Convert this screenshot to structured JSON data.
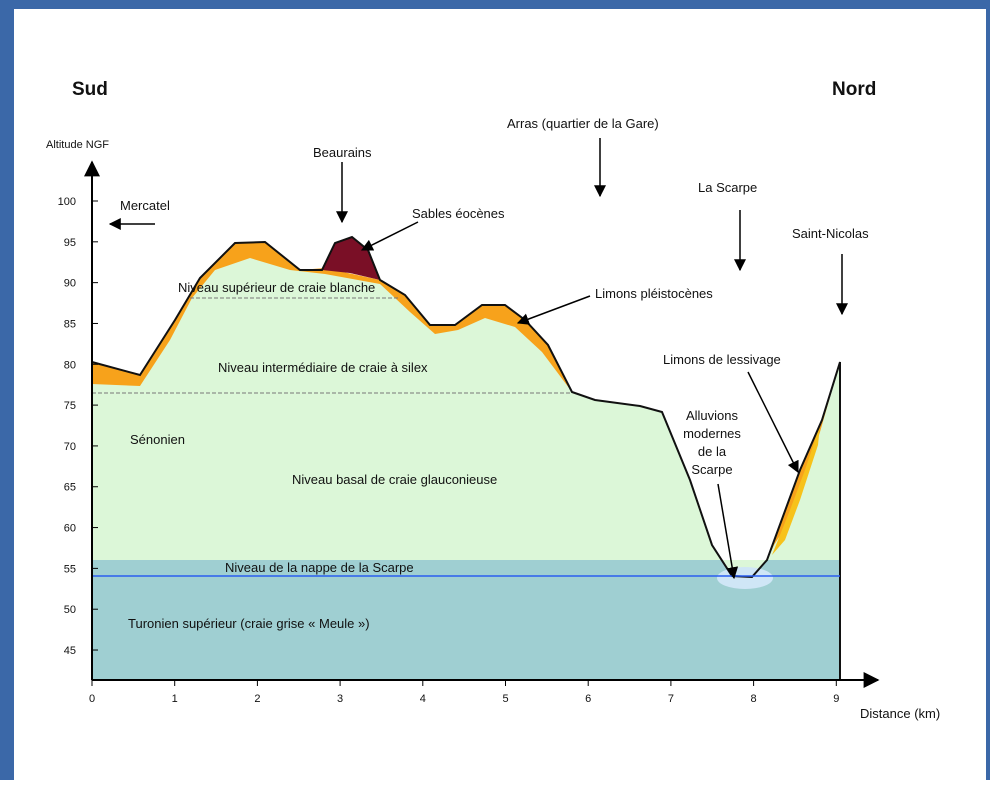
{
  "header": {
    "south": "Sud",
    "north": "Nord"
  },
  "y_axis": {
    "label": "Altitude NGF",
    "ticks": [
      45,
      50,
      55,
      60,
      65,
      70,
      75,
      80,
      85,
      90,
      95,
      100
    ]
  },
  "x_axis": {
    "label": "Distance (km)",
    "ticks": [
      0,
      1,
      2,
      3,
      4,
      5,
      6,
      7,
      8,
      9
    ]
  },
  "places": {
    "mercatel": "Mercatel",
    "beaurains": "Beaurains",
    "arras": "Arras (quartier de la Gare)",
    "scarpe": "La Scarpe",
    "saint_nicolas": "Saint-Nicolas"
  },
  "annotations": {
    "sables": "Sables éocènes",
    "limons_pleisto": "Limons pléistocènes",
    "limons_lessivage": "Limons de lessivage",
    "alluvions": [
      "Alluvions",
      "modernes",
      "de la",
      "Scarpe"
    ]
  },
  "layers": {
    "superieur": "Niveau supérieur de craie blanche",
    "intermediaire": "Niveau intermédiaire de craie à silex",
    "senonien": "Sénonien",
    "basal": "Niveau basal de craie glauconieuse",
    "nappe": "Niveau de la nappe de la Scarpe",
    "turonien": "Turonien supérieur (craie grise « Meule »)"
  }
}
